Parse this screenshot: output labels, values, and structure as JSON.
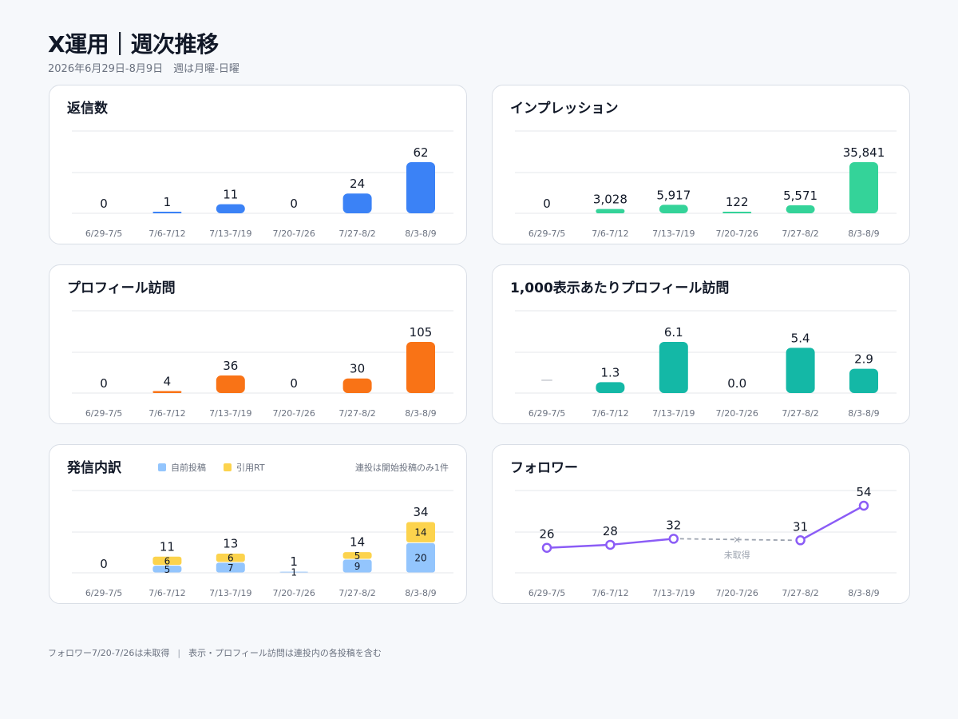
{
  "header": {
    "title": "X運用｜週次推移",
    "subtitle": "2026年6月29日-8月9日　週は月曜-日曜"
  },
  "weeks": [
    "6/29-7/5",
    "7/6-7/12",
    "7/13-7/19",
    "7/20-7/26",
    "7/27-8/2",
    "8/3-8/9"
  ],
  "chart_data": [
    {
      "id": "replies",
      "type": "bar",
      "title": "返信数",
      "categories": [
        "6/29-7/5",
        "7/6-7/12",
        "7/13-7/19",
        "7/20-7/26",
        "7/27-8/2",
        "8/3-8/9"
      ],
      "values": [
        0,
        1,
        11,
        0,
        24,
        62
      ],
      "labels": [
        "0",
        "1",
        "11",
        "0",
        "24",
        "62"
      ],
      "ymax": 62,
      "color": "#3b82f6",
      "grid": true
    },
    {
      "id": "impressions",
      "type": "bar",
      "title": "インプレッション",
      "categories": [
        "6/29-7/5",
        "7/6-7/12",
        "7/13-7/19",
        "7/20-7/26",
        "7/27-8/2",
        "8/3-8/9"
      ],
      "values": [
        0,
        3028,
        5917,
        122,
        5571,
        35841
      ],
      "labels": [
        "0",
        "3,028",
        "5,917",
        "122",
        "5,571",
        "35,841"
      ],
      "ymax": 35841,
      "color": "#34d399",
      "grid": true
    },
    {
      "id": "profile-visits",
      "type": "bar",
      "title": "プロフィール訪問",
      "categories": [
        "6/29-7/5",
        "7/6-7/12",
        "7/13-7/19",
        "7/20-7/26",
        "7/27-8/2",
        "8/3-8/9"
      ],
      "values": [
        0,
        4,
        36,
        0,
        30,
        105
      ],
      "labels": [
        "0",
        "4",
        "36",
        "0",
        "30",
        "105"
      ],
      "ymax": 105,
      "color": "#f97316",
      "grid": true
    },
    {
      "id": "visits-per-1000",
      "type": "bar",
      "title": "1,000表示あたりプロフィール訪問",
      "categories": [
        "6/29-7/5",
        "7/6-7/12",
        "7/13-7/19",
        "7/20-7/26",
        "7/27-8/2",
        "8/3-8/9"
      ],
      "values": [
        null,
        1.3,
        6.1,
        0.0,
        5.4,
        2.9
      ],
      "labels": [
        "—",
        "1.3",
        "6.1",
        "0.0",
        "5.4",
        "2.9"
      ],
      "ymax": 6.1,
      "color": "#14b8a6",
      "grid": true
    },
    {
      "id": "posts-breakdown",
      "type": "bar",
      "stacked": true,
      "title": "発信内訳",
      "note": "連投は開始投稿のみ1件",
      "categories": [
        "6/29-7/5",
        "7/6-7/12",
        "7/13-7/19",
        "7/20-7/26",
        "7/27-8/2",
        "8/3-8/9"
      ],
      "series": [
        {
          "name": "自前投稿",
          "color": "#93c5fd",
          "values": [
            0,
            5,
            7,
            1,
            9,
            20
          ]
        },
        {
          "name": "引用RT",
          "color": "#fcd34d",
          "values": [
            0,
            6,
            6,
            0,
            5,
            14
          ]
        }
      ],
      "totals": [
        "0",
        "11",
        "13",
        "1",
        "14",
        "34"
      ],
      "ymax": 34,
      "grid": true
    },
    {
      "id": "followers",
      "type": "line",
      "title": "フォロワー",
      "categories": [
        "6/29-7/5",
        "7/6-7/12",
        "7/13-7/19",
        "7/20-7/26",
        "7/27-8/2",
        "8/3-8/9"
      ],
      "values": [
        26,
        28,
        32,
        null,
        31,
        54
      ],
      "labels": [
        "26",
        "28",
        "32",
        "",
        "31",
        "54"
      ],
      "missing_label": "未取得",
      "ylim": [
        20,
        54
      ],
      "color": "#8b5cf6",
      "grid": true
    }
  ],
  "footer": {
    "note1": "フォロワー7/20-7/26は未取得",
    "separator": "|",
    "note2": "表示・プロフィール訪問は連投内の各投稿を含む"
  }
}
